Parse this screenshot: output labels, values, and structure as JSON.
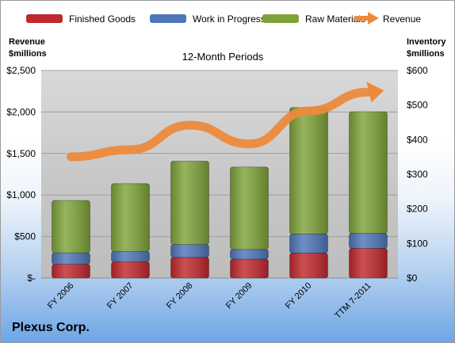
{
  "company": "Plexus Corp.",
  "chart_data": {
    "type": "bar",
    "stacked": true,
    "subtitle": "12-Month Periods",
    "left_axis_title": [
      "Revenue",
      "$millions"
    ],
    "right_axis_title": [
      "Inventory",
      "$millions"
    ],
    "categories": [
      "FY 2006",
      "FY 2007",
      "FY 2008",
      "FY 2009",
      "FY 2010",
      "TTM 7-2011"
    ],
    "series": [
      {
        "name": "Finished Goods",
        "axis": "right",
        "color": "#c0282d",
        "values": [
          40,
          47,
          60,
          55,
          72,
          86
        ]
      },
      {
        "name": "Work in Progress",
        "axis": "right",
        "color": "#4f76b8",
        "values": [
          33,
          30,
          37,
          28,
          55,
          43
        ]
      },
      {
        "name": "Raw Materials",
        "axis": "right",
        "color": "#7fa33a",
        "values": [
          151,
          196,
          241,
          238,
          366,
          352
        ]
      },
      {
        "name": "Revenue",
        "axis": "left",
        "type": "line",
        "color": "#ec8a3c",
        "values": [
          1460,
          1546,
          1842,
          1616,
          2013,
          2240
        ]
      }
    ],
    "left_axis": {
      "min": 0,
      "max": 2500,
      "step": 500,
      "tick_labels": [
        "$-",
        "$500",
        "$1,000",
        "$1,500",
        "$2,000",
        "$2,500"
      ]
    },
    "right_axis": {
      "min": 0,
      "max": 600,
      "step": 100,
      "tick_labels": [
        "$0",
        "$100",
        "$200",
        "$300",
        "$400",
        "$500",
        "$600"
      ]
    },
    "legend_position": "top",
    "grid": true
  }
}
